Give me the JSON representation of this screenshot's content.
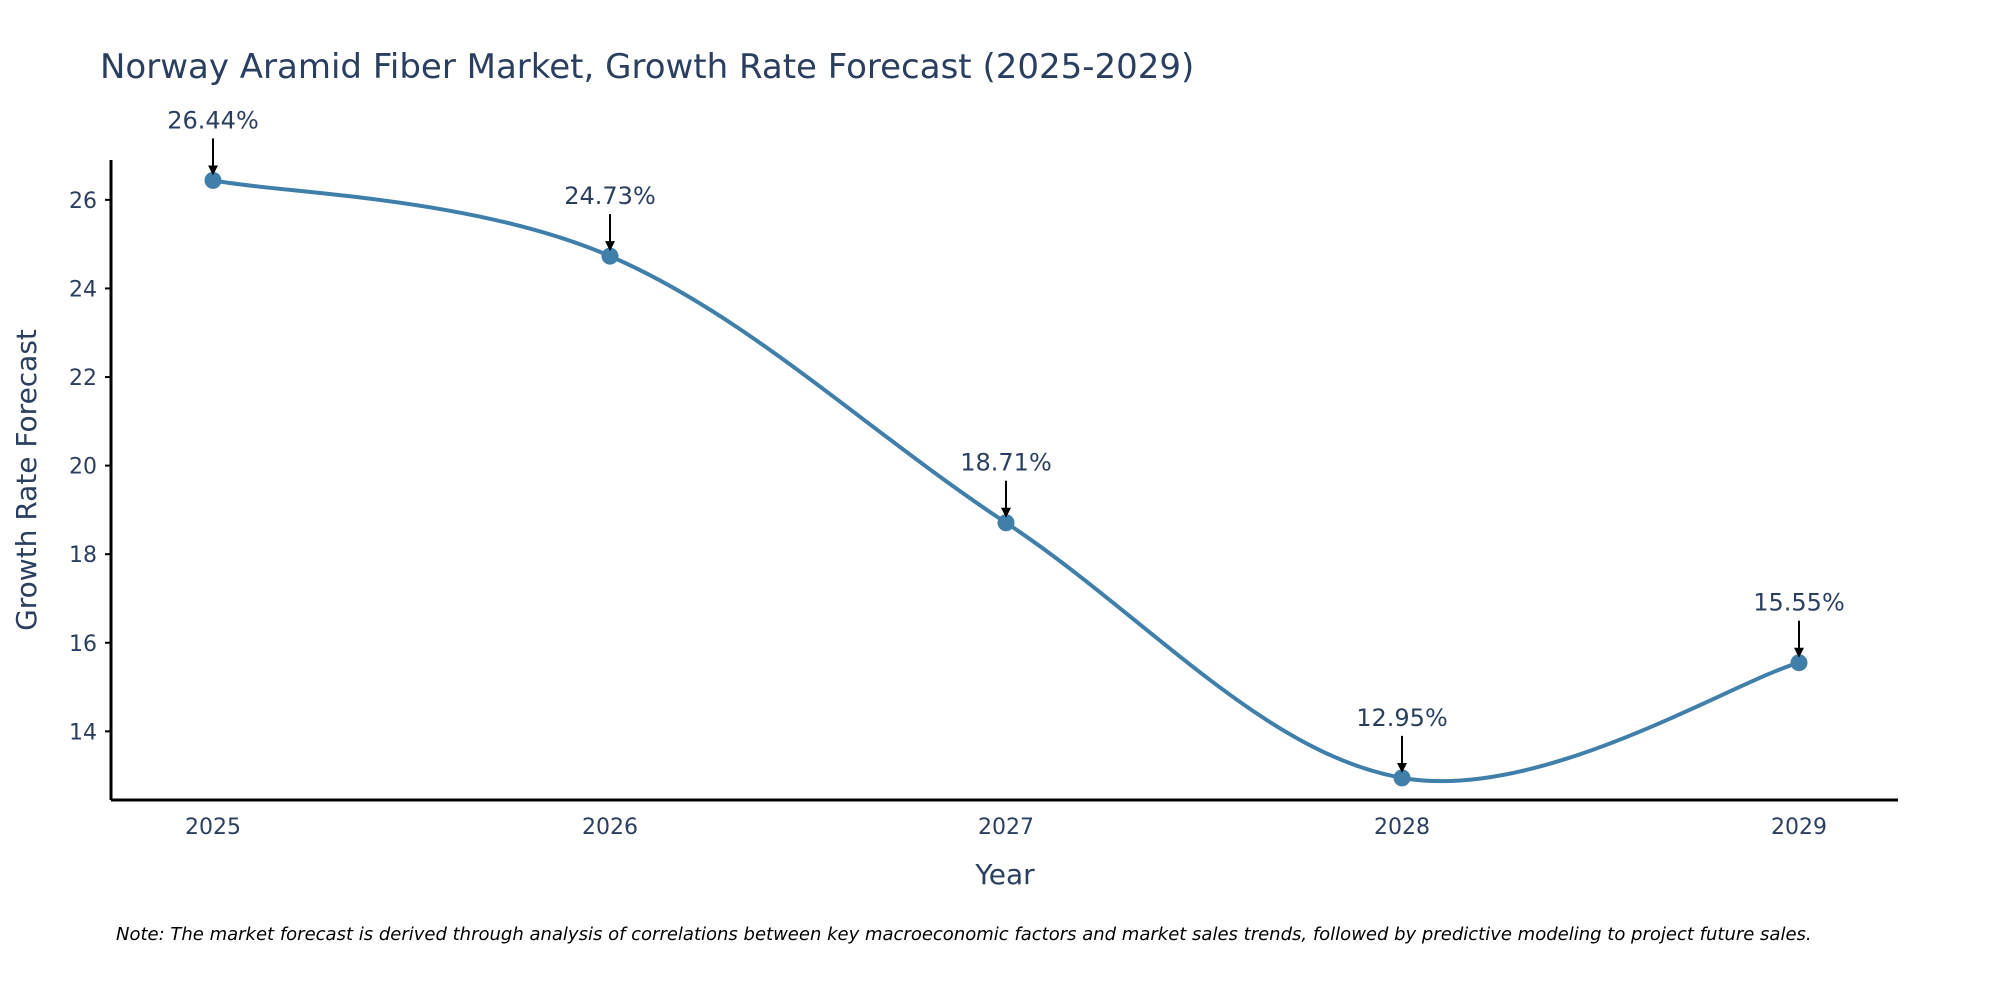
{
  "chart_data": {
    "type": "line",
    "title": "Norway Aramid Fiber Market, Growth Rate Forecast (2025-2029)",
    "xlabel": "Year",
    "ylabel": "Growth Rate Forecast",
    "categories": [
      "2025",
      "2026",
      "2027",
      "2028",
      "2029"
    ],
    "series": [
      {
        "name": "Growth Rate Forecast",
        "values": [
          26.44,
          24.73,
          18.71,
          12.95,
          15.55
        ],
        "labels": [
          "26.44%",
          "24.73%",
          "18.71%",
          "12.95%",
          "15.55%"
        ],
        "color": "#3f7faa"
      }
    ],
    "yticks": [
      14,
      16,
      18,
      20,
      22,
      24,
      26
    ],
    "ytick_labels": [
      "14",
      "16",
      "18",
      "20",
      "22",
      "24",
      "26"
    ],
    "ylim": [
      12.45,
      26.9
    ],
    "grid": false,
    "line_shape": "spline",
    "annotation_arrows": true,
    "note": "Note: The market forecast is derived through analysis of correlations between key macroeconomic factors and market sales trends, followed by predictive modeling to project future sales."
  }
}
